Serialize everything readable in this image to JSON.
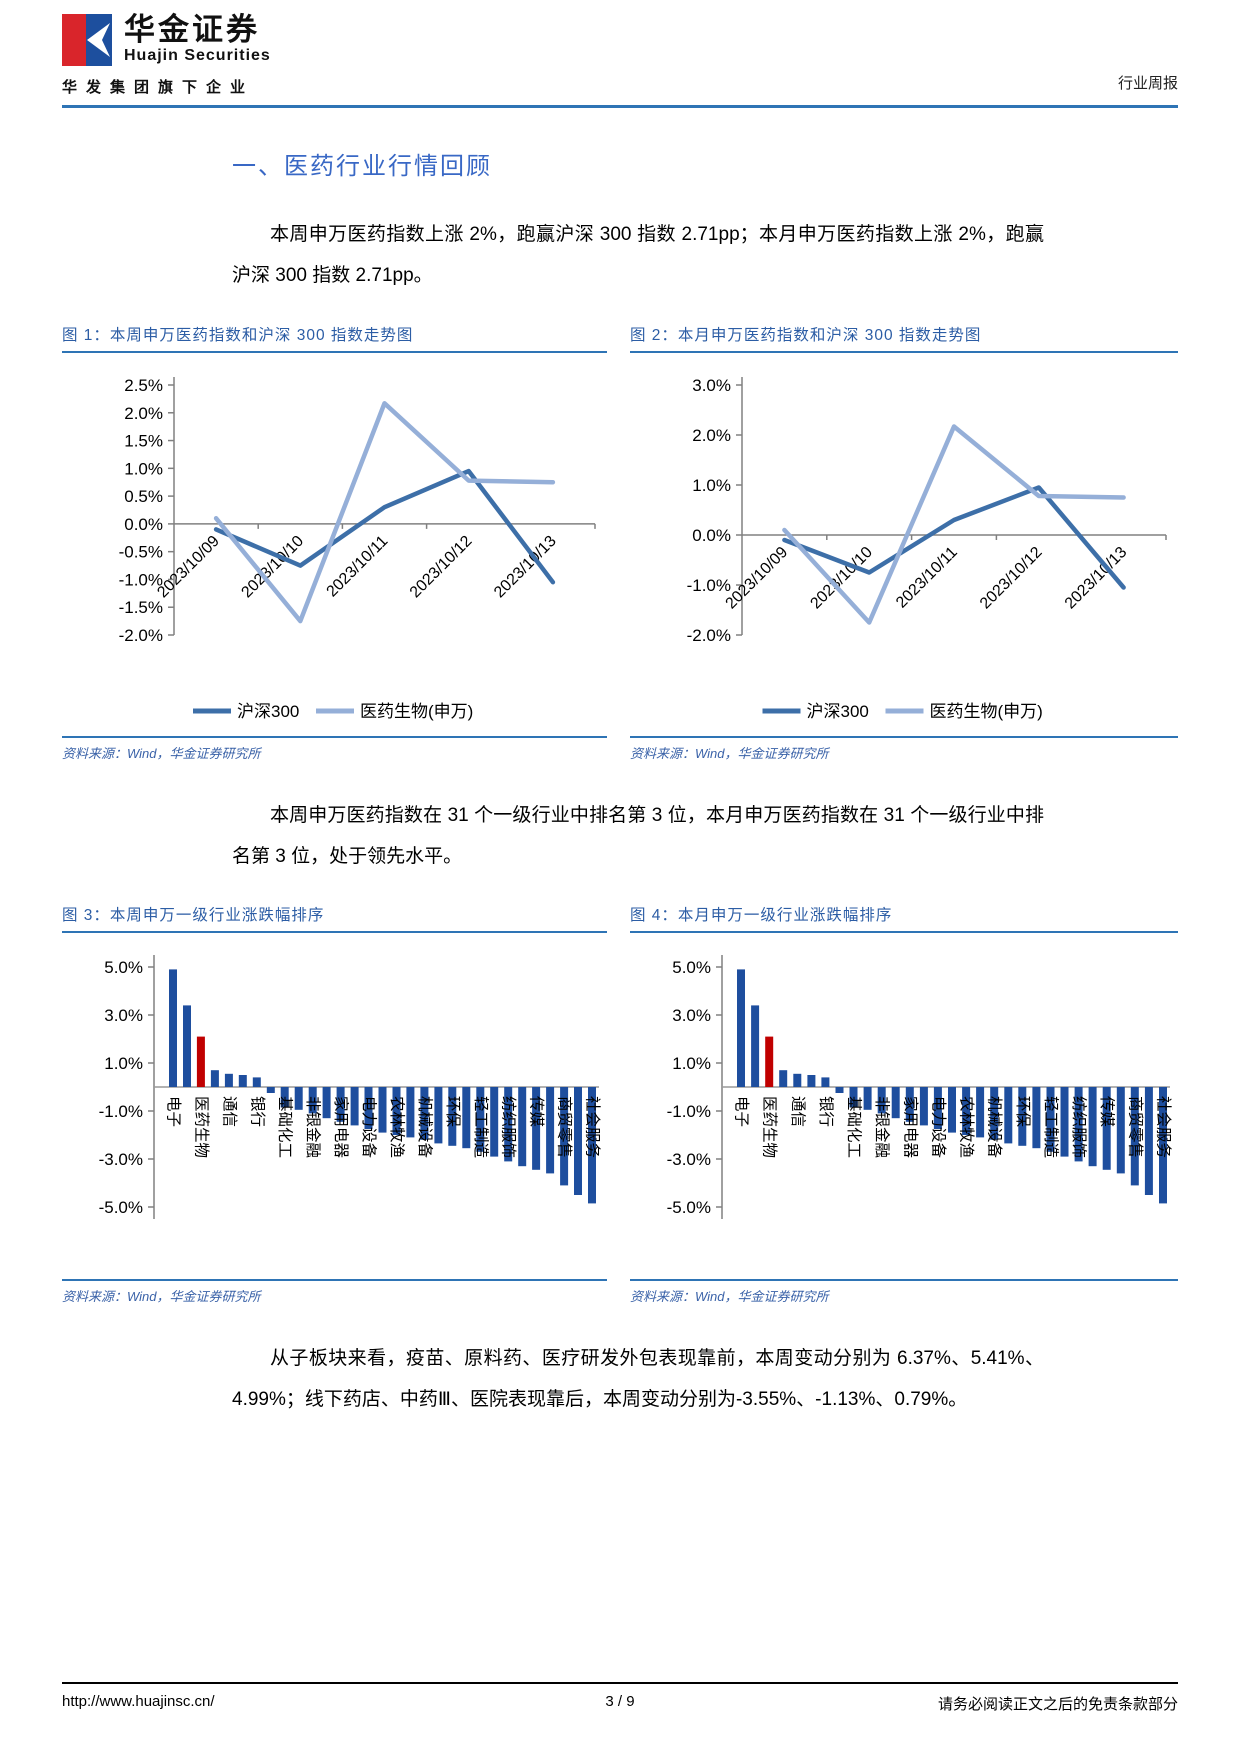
{
  "header": {
    "brand_cn": "华金证券",
    "brand_en": "Huajin Securities",
    "tagline": "华发集团旗下企业",
    "doc_type": "行业周报"
  },
  "section_title": "一、医药行业行情回顾",
  "paragraphs": {
    "p1": "本周申万医药指数上涨 2%，跑赢沪深 300 指数 2.71pp；本月申万医药指数上涨 2%，跑赢沪深 300 指数 2.71pp。",
    "p2": "本周申万医药指数在 31 个一级行业中排名第 3 位，本月申万医药指数在 31 个一级行业中排名第 3 位，处于领先水平。",
    "p3": "从子板块来看，疫苗、原料药、医疗研发外包表现靠前，本周变动分别为 6.37%、5.41%、4.99%；线下药店、中药Ⅲ、医院表现靠后，本周变动分别为-3.55%、-1.13%、0.79%。"
  },
  "figures": [
    {
      "caption": "图 1：本周申万医药指数和沪深 300 指数走势图",
      "source": "资料来源：Wind，华金证券研究所"
    },
    {
      "caption": "图 2：本月申万医药指数和沪深 300 指数走势图",
      "source": "资料来源：Wind，华金证券研究所"
    },
    {
      "caption": "图 3：本周申万一级行业涨跌幅排序",
      "source": "资料来源：Wind，华金证券研究所"
    },
    {
      "caption": "图 4：本月申万一级行业涨跌幅排序",
      "source": "资料来源：Wind，华金证券研究所"
    }
  ],
  "chart_data": [
    {
      "type": "line",
      "title": "本周申万医药指数和沪深300指数走势图",
      "x": [
        "2023/10/09",
        "2023/10/10",
        "2023/10/11",
        "2023/10/12",
        "2023/10/13"
      ],
      "series": [
        {
          "name": "沪深300",
          "color": "#3D6FA8",
          "values": [
            -0.1,
            -0.75,
            0.3,
            0.95,
            -1.05
          ]
        },
        {
          "name": "医药生物(申万)",
          "color": "#95AFD8",
          "values": [
            0.1,
            -1.75,
            2.17,
            0.78,
            0.75
          ]
        }
      ],
      "ylim": [
        -2.0,
        2.5
      ],
      "ytick_step": 0.5,
      "legend_position": "bottom",
      "grid": false
    },
    {
      "type": "line",
      "title": "本月申万医药指数和沪深300指数走势图",
      "x": [
        "2023/10/09",
        "2023/10/10",
        "2023/10/11",
        "2023/10/12",
        "2023/10/13"
      ],
      "series": [
        {
          "name": "沪深300",
          "color": "#3D6FA8",
          "values": [
            -0.1,
            -0.75,
            0.3,
            0.95,
            -1.05
          ]
        },
        {
          "name": "医药生物(申万)",
          "color": "#95AFD8",
          "values": [
            0.1,
            -1.75,
            2.17,
            0.78,
            0.75
          ]
        }
      ],
      "ylim": [
        -2.0,
        3.0
      ],
      "ytick_step": 1.0,
      "legend_position": "bottom",
      "grid": false
    },
    {
      "type": "bar",
      "title": "本周申万一级行业涨跌幅排序",
      "n_bars": 31,
      "values": [
        4.9,
        3.4,
        2.1,
        0.7,
        0.55,
        0.5,
        0.4,
        -0.25,
        -0.85,
        -0.95,
        -1.1,
        -1.3,
        -1.45,
        -1.6,
        -1.75,
        -1.9,
        -2.0,
        -2.1,
        -2.2,
        -2.35,
        -2.45,
        -2.55,
        -2.7,
        -2.9,
        -3.1,
        -3.3,
        -3.45,
        -3.6,
        -4.1,
        -4.5,
        -4.85
      ],
      "labels_every_other_bar": [
        "电子",
        "医药生物",
        "通信",
        "银行",
        "基础化工",
        "非银金融",
        "家用电器",
        "电力设备",
        "农林牧渔",
        "机械设备",
        "环保",
        "轻工制造",
        "纺织服饰",
        "传媒",
        "商贸零售",
        "社会服务"
      ],
      "highlight_index": 2,
      "highlight_color": "#C00000",
      "bar_color": "#1E4E9E",
      "yticks": [
        5.0,
        3.0,
        1.0,
        -1.0,
        -3.0,
        -5.0
      ],
      "ylim": [
        -5.5,
        5.5
      ],
      "grid": false
    },
    {
      "type": "bar",
      "title": "本月申万一级行业涨跌幅排序",
      "n_bars": 31,
      "values": [
        4.9,
        3.4,
        2.1,
        0.7,
        0.55,
        0.5,
        0.4,
        -0.25,
        -0.85,
        -0.95,
        -1.1,
        -1.3,
        -1.45,
        -1.6,
        -1.75,
        -1.9,
        -2.0,
        -2.1,
        -2.2,
        -2.35,
        -2.45,
        -2.55,
        -2.7,
        -2.9,
        -3.1,
        -3.3,
        -3.45,
        -3.6,
        -4.1,
        -4.5,
        -4.85
      ],
      "labels_every_other_bar": [
        "电子",
        "医药生物",
        "通信",
        "银行",
        "基础化工",
        "非银金融",
        "家用电器",
        "电力设备",
        "农林牧渔",
        "机械设备",
        "环保",
        "轻工制造",
        "纺织服饰",
        "传媒",
        "商贸零售",
        "社会服务"
      ],
      "highlight_index": 2,
      "highlight_color": "#C00000",
      "bar_color": "#1E4E9E",
      "yticks": [
        5.0,
        3.0,
        1.0,
        -1.0,
        -3.0,
        -5.0
      ],
      "ylim": [
        -5.5,
        5.5
      ],
      "grid": false
    }
  ],
  "footer": {
    "url": "http://www.huajinsc.cn/",
    "page": "3 / 9",
    "disclaimer": "请务必阅读正文之后的免责条款部分"
  }
}
